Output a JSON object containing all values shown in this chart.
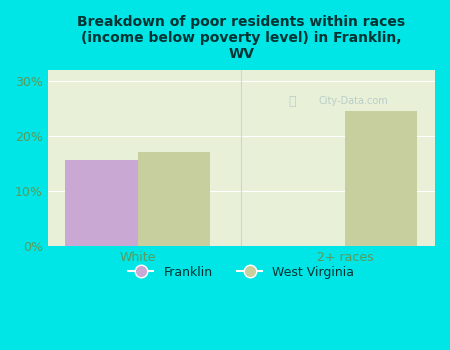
{
  "title": "Breakdown of poor residents within races\n(income below poverty level) in Franklin,\nWV",
  "categories": [
    "White",
    "2+ races"
  ],
  "franklin_values": [
    15.5,
    0.0
  ],
  "west_virginia_values": [
    17.0,
    24.5
  ],
  "franklin_color": "#c9a8d4",
  "west_virginia_color": "#c8cf9e",
  "background_color": "#00e5e5",
  "plot_bg_color": "#e8f0d8",
  "ylim": [
    0,
    32
  ],
  "yticks": [
    0,
    10,
    20,
    30
  ],
  "ytick_labels": [
    "0%",
    "10%",
    "20%",
    "30%"
  ],
  "tick_color": "#5a9a5a",
  "watermark": "City-Data.com",
  "bar_width": 0.35,
  "legend_franklin": "Franklin",
  "legend_west_virginia": "West Virginia",
  "title_color": "#003333",
  "xlabel_color": "#5a9a5a"
}
